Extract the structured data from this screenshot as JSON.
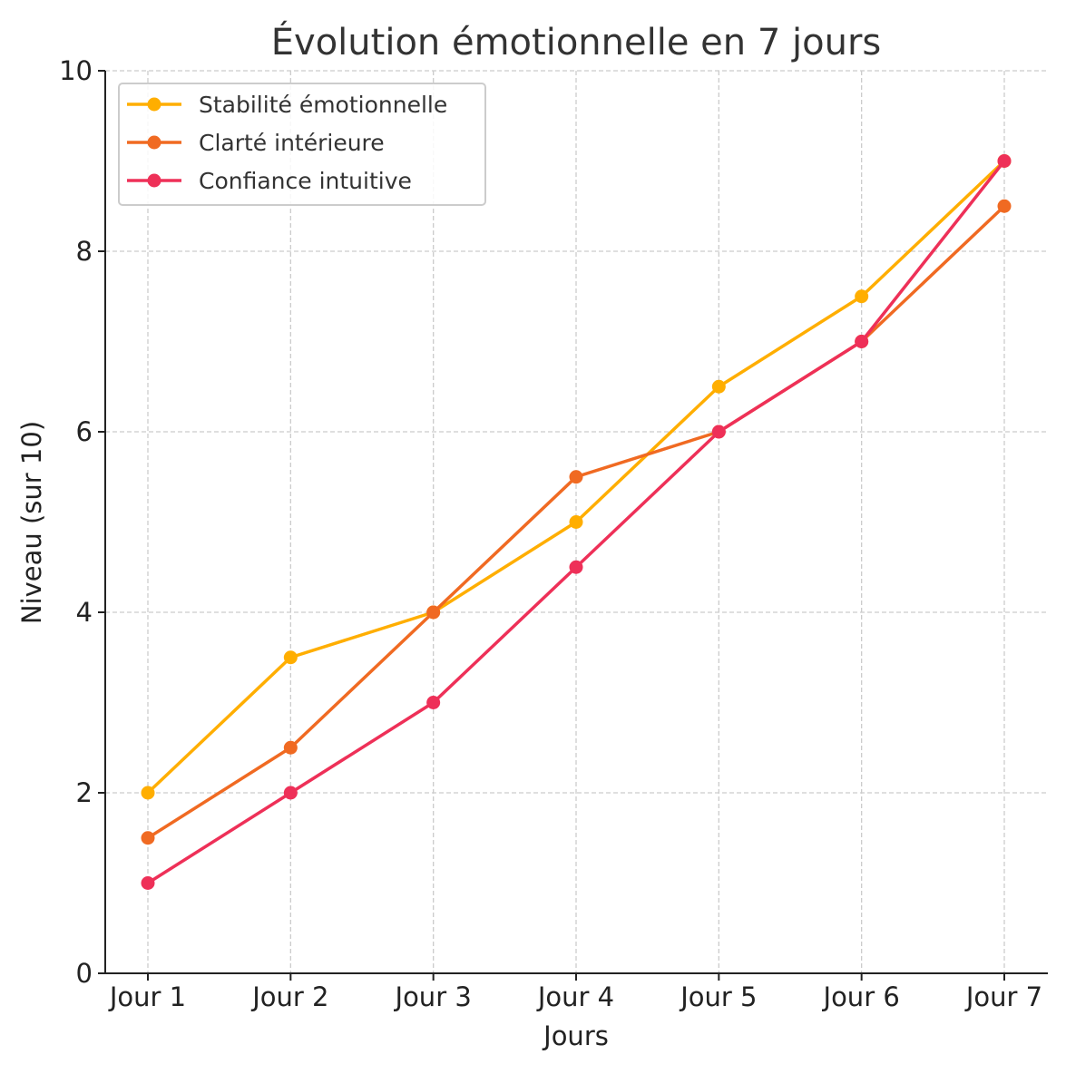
{
  "chart_data": {
    "type": "line",
    "title": "Évolution émotionnelle en 7 jours",
    "xlabel": "Jours",
    "ylabel": "Niveau (sur 10)",
    "categories": [
      "Jour 1",
      "Jour 2",
      "Jour 3",
      "Jour 4",
      "Jour 5",
      "Jour 6",
      "Jour 7"
    ],
    "ylim": [
      0,
      10
    ],
    "yticks": [
      0,
      2,
      4,
      6,
      8,
      10
    ],
    "grid": true,
    "legend_position": "top-left",
    "series": [
      {
        "name": "Stabilité émotionnelle",
        "color": "#FFAE00",
        "values": [
          2,
          3.5,
          4,
          5,
          6.5,
          7.5,
          9
        ]
      },
      {
        "name": "Clarté intérieure",
        "color": "#F06A22",
        "values": [
          1.5,
          2.5,
          4,
          5.5,
          6,
          7,
          8.5
        ]
      },
      {
        "name": "Confiance intuitive",
        "color": "#EE3058",
        "values": [
          1,
          2,
          3,
          4.5,
          6,
          7,
          9
        ]
      }
    ]
  }
}
